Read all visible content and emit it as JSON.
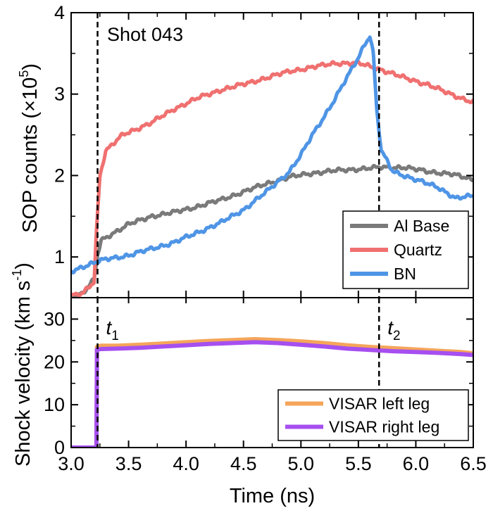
{
  "chart_data": [
    {
      "type": "line",
      "panel": "top",
      "annotation": "Shot 043",
      "ylabel_main": "SOP counts (×10",
      "ylabel_exp": "5",
      "ylabel_tail": ")",
      "xlim": [
        3.0,
        6.5
      ],
      "ylim": [
        0.5,
        4.0
      ],
      "yticks": [
        1,
        2,
        3,
        4
      ],
      "yticklabels": [
        "1",
        "2",
        "3",
        "4"
      ],
      "legend_position": "bottom-right",
      "vlines": [
        3.23,
        5.68
      ],
      "series": [
        {
          "name": "Al Base",
          "color": "#7a7a7a",
          "x": [
            3.0,
            3.1,
            3.2,
            3.23,
            3.26,
            3.35,
            3.5,
            3.7,
            3.9,
            4.1,
            4.3,
            4.5,
            4.7,
            4.9,
            5.1,
            5.3,
            5.5,
            5.7,
            5.9,
            6.1,
            6.3,
            6.5
          ],
          "y": [
            0.52,
            0.55,
            0.72,
            1.02,
            1.2,
            1.28,
            1.4,
            1.5,
            1.55,
            1.62,
            1.7,
            1.8,
            1.9,
            1.98,
            2.03,
            2.06,
            2.08,
            2.1,
            2.1,
            2.05,
            2.02,
            1.95
          ]
        },
        {
          "name": "Quartz",
          "color": "#f07070",
          "x": [
            3.0,
            3.1,
            3.2,
            3.22,
            3.25,
            3.3,
            3.45,
            3.7,
            3.9,
            4.1,
            4.3,
            4.5,
            4.7,
            4.9,
            5.1,
            5.3,
            5.5,
            5.7,
            5.9,
            6.1,
            6.3,
            6.5
          ],
          "y": [
            0.52,
            0.55,
            0.7,
            1.3,
            2.0,
            2.3,
            2.5,
            2.65,
            2.82,
            2.95,
            3.05,
            3.12,
            3.2,
            3.28,
            3.33,
            3.38,
            3.38,
            3.3,
            3.2,
            3.12,
            3.0,
            2.9
          ]
        },
        {
          "name": "BN",
          "color": "#4f95e6",
          "x": [
            3.0,
            3.1,
            3.2,
            3.3,
            3.5,
            3.7,
            3.9,
            4.1,
            4.3,
            4.5,
            4.7,
            4.9,
            5.0,
            5.1,
            5.2,
            5.3,
            5.4,
            5.5,
            5.55,
            5.6,
            5.63,
            5.66,
            5.7,
            5.8,
            6.0,
            6.2,
            6.35,
            6.5
          ],
          "y": [
            0.82,
            0.88,
            0.93,
            0.97,
            1.02,
            1.1,
            1.18,
            1.3,
            1.42,
            1.58,
            1.8,
            2.05,
            2.25,
            2.5,
            2.72,
            2.95,
            3.2,
            3.45,
            3.6,
            3.72,
            3.5,
            2.8,
            2.3,
            2.05,
            1.95,
            1.85,
            1.72,
            1.75
          ]
        }
      ]
    },
    {
      "type": "line",
      "panel": "bottom",
      "ylabel_main": "Shock velocity (km s",
      "ylabel_exp": "-1",
      "ylabel_tail": ")",
      "xlabel": "Time (ns)",
      "xlim": [
        3.0,
        6.5
      ],
      "ylim": [
        0,
        35
      ],
      "yticks": [
        0,
        10,
        20,
        30
      ],
      "yticklabels": [
        "0",
        "10",
        "20",
        "30"
      ],
      "xticks": [
        3.0,
        3.5,
        4.0,
        4.5,
        5.0,
        5.5,
        6.0,
        6.5
      ],
      "xticklabels": [
        "3.0",
        "3.5",
        "4.0",
        "4.5",
        "5.0",
        "5.5",
        "6.0",
        "6.5"
      ],
      "legend_position": "bottom-right",
      "vlines": [
        3.23,
        5.68
      ],
      "t_labels": [
        {
          "base": "t",
          "sub": "1",
          "x": 3.23
        },
        {
          "base": "t",
          "sub": "2",
          "x": 5.68
        }
      ],
      "series": [
        {
          "name": "VISAR left leg",
          "color": "#f5a55a",
          "x": [
            3.0,
            3.22,
            3.225,
            3.26,
            3.4,
            3.6,
            3.8,
            4.0,
            4.2,
            4.4,
            4.6,
            4.8,
            5.0,
            5.2,
            5.4,
            5.6,
            5.8,
            6.0,
            6.2,
            6.4,
            6.5
          ],
          "y": [
            0,
            0,
            23.5,
            23.8,
            23.8,
            24.0,
            24.3,
            24.6,
            24.9,
            25.1,
            25.3,
            25.1,
            24.8,
            24.4,
            23.9,
            23.5,
            23.2,
            22.9,
            22.6,
            22.3,
            22.0
          ]
        },
        {
          "name": "VISAR right leg",
          "color": "#a64ff0",
          "x": [
            3.0,
            3.22,
            3.225,
            3.26,
            3.4,
            3.6,
            3.8,
            4.0,
            4.2,
            4.4,
            4.6,
            4.8,
            5.0,
            5.2,
            5.4,
            5.6,
            5.8,
            6.0,
            6.2,
            6.4,
            6.5
          ],
          "y": [
            0,
            0,
            22.9,
            23.0,
            23.1,
            23.3,
            23.6,
            23.9,
            24.2,
            24.4,
            24.6,
            24.4,
            24.0,
            23.6,
            23.1,
            22.8,
            22.5,
            22.3,
            22.1,
            21.8,
            21.6
          ]
        }
      ]
    }
  ]
}
